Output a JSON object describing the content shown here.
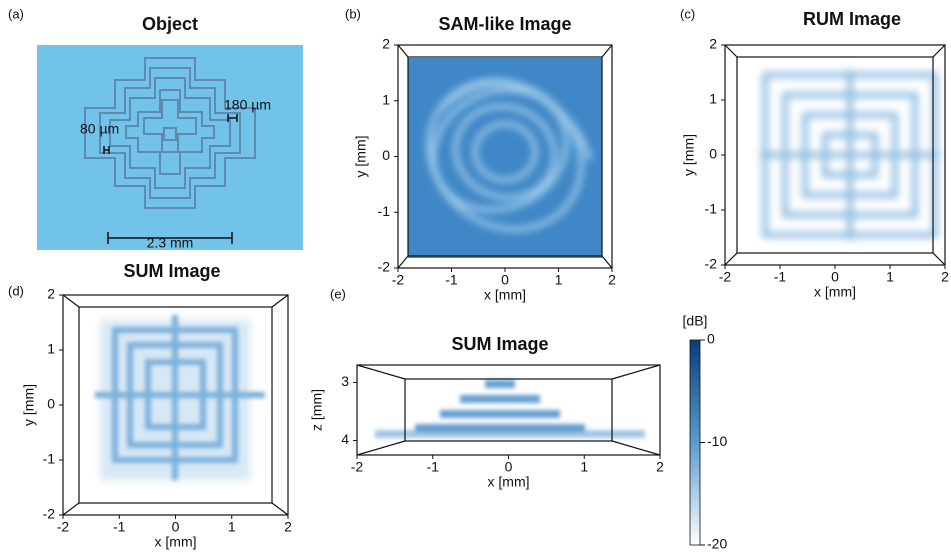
{
  "chart_data": [
    {
      "type": "photo",
      "panel_label": "(a)",
      "title": "Object",
      "annotations": [
        "180 µm",
        "80 µm",
        "2.3 mm"
      ]
    },
    {
      "type": "image",
      "panel_label": "(b)",
      "title": "SAM-like Image",
      "xlabel": "x [mm]",
      "ylabel": "y [mm]",
      "xlim": [
        -2,
        2
      ],
      "ylim": [
        -2,
        2
      ],
      "xticks": [
        -2,
        -1,
        0,
        1,
        2
      ],
      "yticks": [
        -2,
        -1,
        0,
        1,
        2
      ]
    },
    {
      "type": "image",
      "panel_label": "(c)",
      "title": "RUM Image",
      "xlabel": "x [mm]",
      "ylabel": "y [mm]",
      "xlim": [
        -2,
        2
      ],
      "ylim": [
        -2,
        2
      ],
      "xticks": [
        -2,
        -1,
        0,
        1,
        2
      ],
      "yticks": [
        -2,
        -1,
        0,
        1,
        2
      ]
    },
    {
      "type": "image",
      "panel_label": "(d)",
      "title": "SUM Image",
      "xlabel": "x [mm]",
      "ylabel": "y [mm]",
      "xlim": [
        -2,
        2
      ],
      "ylim": [
        -2,
        2
      ],
      "xticks": [
        -2,
        -1,
        0,
        1,
        2
      ],
      "yticks": [
        -2,
        -1,
        0,
        1,
        2
      ]
    },
    {
      "type": "image",
      "panel_label": "(e)",
      "title": "SUM Image",
      "xlabel": "x [mm]",
      "ylabel": "z [mm]",
      "xlim": [
        -2,
        2
      ],
      "ylim": [
        4.25,
        2.7
      ],
      "xticks": [
        -2,
        -1,
        0,
        1,
        2
      ],
      "yticks": [
        3,
        4
      ],
      "colorbar": {
        "label": "[dB]",
        "lim": [
          -20,
          0
        ],
        "ticks": [
          0,
          -10,
          -20
        ]
      }
    }
  ]
}
